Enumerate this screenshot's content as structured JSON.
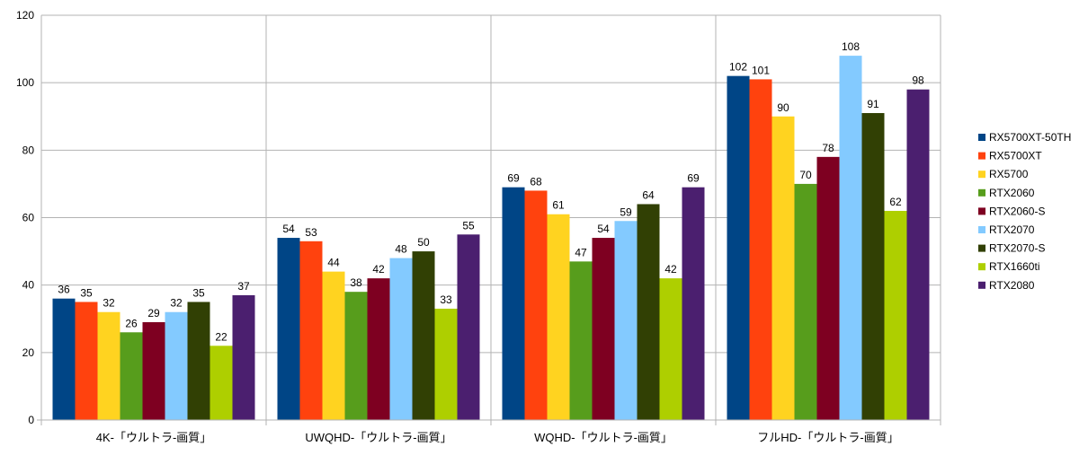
{
  "chart_data": {
    "type": "bar",
    "title": "",
    "xlabel": "",
    "ylabel": "",
    "ylim": [
      0,
      120
    ],
    "yticks": [
      0,
      20,
      40,
      60,
      80,
      100,
      120
    ],
    "grid": true,
    "legend_position": "right",
    "categories": [
      "4K-「ウルトラ-画質」",
      "UWQHD-「ウルトラ-画質」",
      "WQHD-「ウルトラ-画質」",
      "フルHD-「ウルトラ-画質」"
    ],
    "series": [
      {
        "name": "RX5700XT-50TH",
        "color": "#004586",
        "values": [
          36,
          54,
          69,
          102
        ]
      },
      {
        "name": "RX5700XT",
        "color": "#ff420e",
        "values": [
          35,
          53,
          68,
          101
        ]
      },
      {
        "name": "RX5700",
        "color": "#ffd320",
        "values": [
          32,
          44,
          61,
          90
        ]
      },
      {
        "name": "RTX2060",
        "color": "#579d1c",
        "values": [
          26,
          38,
          47,
          70
        ]
      },
      {
        "name": "RTX2060-S",
        "color": "#7e0021",
        "values": [
          29,
          42,
          54,
          78
        ]
      },
      {
        "name": "RTX2070",
        "color": "#83caff",
        "values": [
          32,
          48,
          59,
          108
        ]
      },
      {
        "name": "RTX2070-S",
        "color": "#314004",
        "values": [
          35,
          50,
          64,
          91
        ]
      },
      {
        "name": "RTX1660ti",
        "color": "#aecf00",
        "values": [
          22,
          33,
          42,
          62
        ]
      },
      {
        "name": "RTX2080",
        "color": "#4b1f6f",
        "values": [
          37,
          55,
          69,
          98
        ]
      }
    ]
  }
}
